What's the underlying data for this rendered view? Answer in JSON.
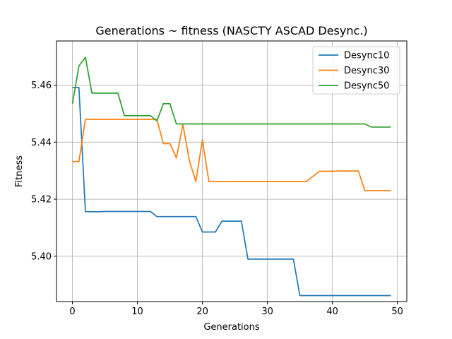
{
  "chart_data": {
    "type": "line",
    "title": "Generations ~ fitness (NASCTY ASCAD Desync.)",
    "xlabel": "Generations",
    "ylabel": "Fitness",
    "xlim": [
      -2.45,
      51.45
    ],
    "ylim": [
      5.3841,
      5.4755
    ],
    "xticks": [
      "0",
      "10",
      "20",
      "30",
      "40",
      "50"
    ],
    "yticks": [
      "5.40",
      "5.42",
      "5.44",
      "5.46"
    ],
    "grid": true,
    "legend_position": "top-right",
    "x": [
      0,
      1,
      2,
      3,
      4,
      5,
      6,
      7,
      8,
      9,
      10,
      11,
      12,
      13,
      14,
      15,
      16,
      17,
      18,
      19,
      20,
      21,
      22,
      23,
      24,
      25,
      26,
      27,
      28,
      29,
      30,
      31,
      32,
      33,
      34,
      35,
      36,
      37,
      38,
      39,
      40,
      41,
      42,
      43,
      44,
      45,
      46,
      47,
      48,
      49
    ],
    "series": [
      {
        "name": "Desync10",
        "color": "#1f77b4",
        "values": [
          5.4592,
          5.4592,
          5.4156,
          5.4156,
          5.4156,
          5.4157,
          5.4157,
          5.4157,
          5.4157,
          5.4157,
          5.4157,
          5.4157,
          5.4157,
          5.4139,
          5.4139,
          5.4139,
          5.4139,
          5.4139,
          5.4139,
          5.4139,
          5.4085,
          5.4085,
          5.4085,
          5.4123,
          5.4123,
          5.4123,
          5.4123,
          5.399,
          5.399,
          5.399,
          5.399,
          5.399,
          5.399,
          5.399,
          5.399,
          5.3862,
          5.3862,
          5.3862,
          5.3862,
          5.3862,
          5.3862,
          5.3862,
          5.3862,
          5.3862,
          5.3862,
          5.3862,
          5.3862,
          5.3862,
          5.3862,
          5.3862
        ]
      },
      {
        "name": "Desync30",
        "color": "#ff7f0e",
        "values": [
          5.4332,
          5.4332,
          5.448,
          5.448,
          5.448,
          5.448,
          5.448,
          5.448,
          5.448,
          5.448,
          5.448,
          5.448,
          5.448,
          5.448,
          5.4395,
          5.4395,
          5.4345,
          5.4462,
          5.4335,
          5.4262,
          5.4408,
          5.4262,
          5.4262,
          5.4262,
          5.4262,
          5.4262,
          5.4262,
          5.4262,
          5.4262,
          5.4262,
          5.4262,
          5.4262,
          5.4262,
          5.4262,
          5.4262,
          5.4262,
          5.4262,
          5.428,
          5.4298,
          5.4298,
          5.4298,
          5.4299,
          5.4299,
          5.4299,
          5.4299,
          5.423,
          5.423,
          5.423,
          5.423,
          5.423
        ]
      },
      {
        "name": "Desync50",
        "color": "#2ca02c",
        "values": [
          5.4535,
          5.4667,
          5.4698,
          5.4572,
          5.4572,
          5.4572,
          5.4572,
          5.4572,
          5.4493,
          5.4493,
          5.4493,
          5.4493,
          5.4493,
          5.4475,
          5.4535,
          5.4535,
          5.4464,
          5.4464,
          5.4464,
          5.4464,
          5.4464,
          5.4464,
          5.4464,
          5.4464,
          5.4464,
          5.4464,
          5.4464,
          5.4464,
          5.4464,
          5.4464,
          5.4464,
          5.4464,
          5.4464,
          5.4464,
          5.4464,
          5.4464,
          5.4464,
          5.4464,
          5.4464,
          5.4464,
          5.4464,
          5.4464,
          5.4464,
          5.4464,
          5.4464,
          5.4464,
          5.4453,
          5.4453,
          5.4453,
          5.4453
        ]
      }
    ]
  }
}
